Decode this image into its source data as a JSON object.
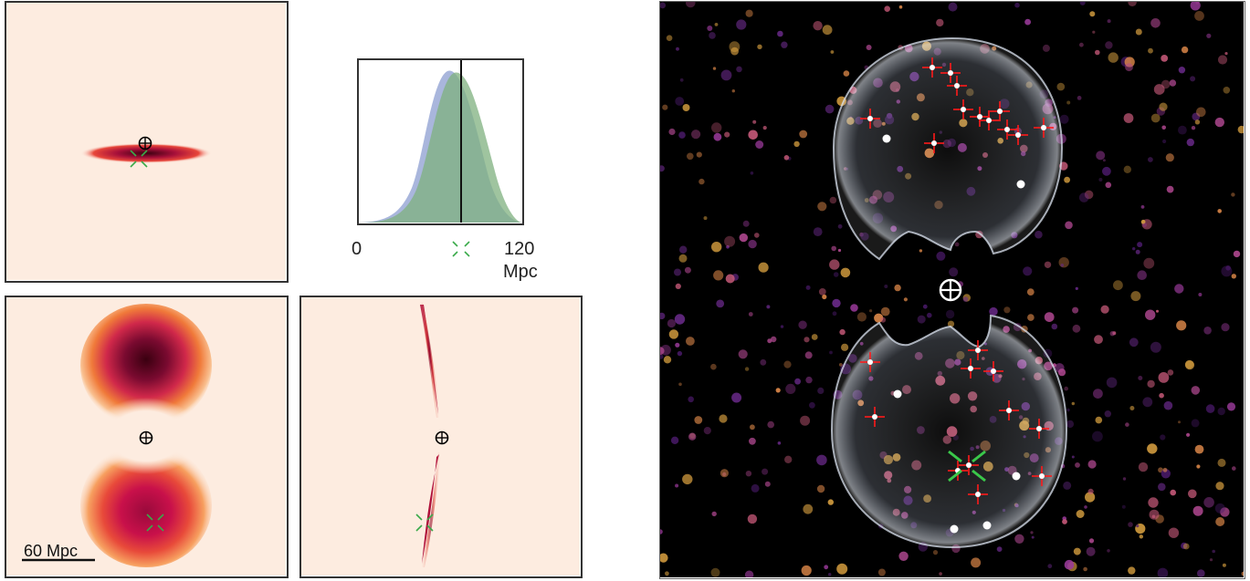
{
  "colors": {
    "panel_background": "#fdece0",
    "posterior_dark": "#3a0010",
    "posterior_mid": "#b0103a",
    "posterior_light": "#f07a3a",
    "histogram_blue": "#9aa9d6",
    "histogram_green": "#7fb07f",
    "marker_green": "#3aaa4a",
    "crosshair_red": "#ff1a1a",
    "sky_background": "#000000"
  },
  "histogram": {
    "xmin_label": "0",
    "xmax_label": "120",
    "unit_label": "Mpc",
    "xlim": [
      0,
      120
    ],
    "blue_peak": 75,
    "green_peak": 78,
    "vertical_line_at": 75
  },
  "scale_bar": {
    "label": "60 Mpc"
  },
  "icons": {
    "earth_marker": "earth-symbol-icon",
    "true_source_marker": "green-x-icon",
    "candidate_host_marker": "red-crosshair-icon"
  }
}
